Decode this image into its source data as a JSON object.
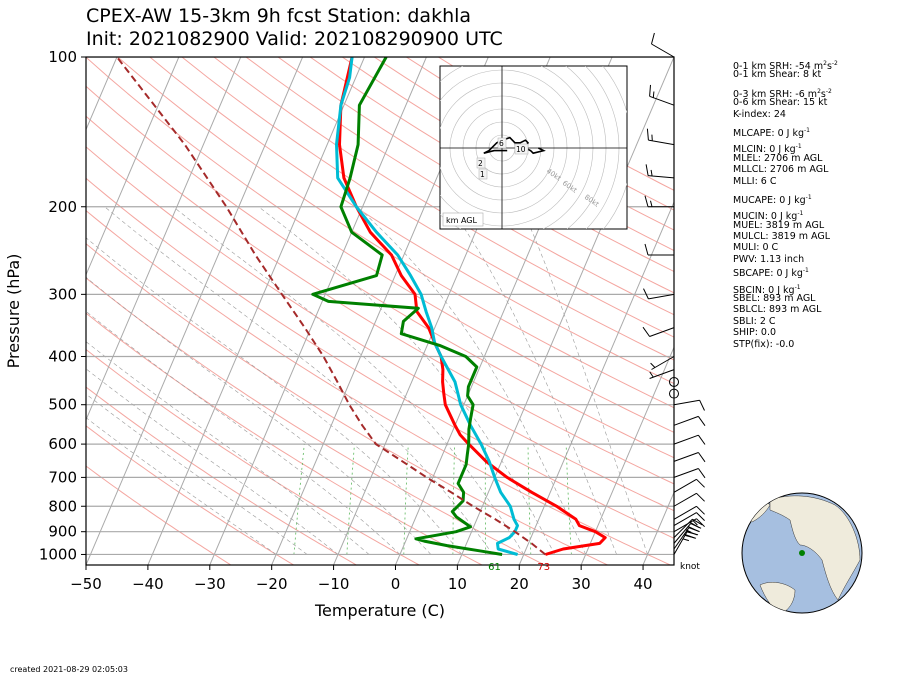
{
  "header": {
    "line1": "CPEX-AW 15-3km  9h fcst  Station: dakhla",
    "line2": "Init: 2021082900  Valid: 202108290900 UTC"
  },
  "footer": {
    "created": "created 2021-08-29 02:05:03"
  },
  "indices": [
    {
      "text": "0-1 km SRH: -54 m",
      "sup": "2",
      "tail": "s",
      "sup2": "-2"
    },
    {
      "text": "0-1 km Shear: 8 kt"
    },
    {
      "gap": true
    },
    {
      "text": "0-3 km SRH: -6 m",
      "sup": "2",
      "tail": "s",
      "sup2": "-2"
    },
    {
      "text": "0-6 km Shear: 15 kt"
    },
    {
      "text": "K-index: 24"
    },
    {
      "gap": true
    },
    {
      "text": "MLCAPE: 0 J kg",
      "sup": "-1"
    },
    {
      "gap": true
    },
    {
      "text": "MLCIN: 0 J kg",
      "sup": "-1"
    },
    {
      "text": "MLEL: 2706 m AGL"
    },
    {
      "text": "MLLCL: 2706 m AGL"
    },
    {
      "text": "MLLI: 6 C"
    },
    {
      "gap": true
    },
    {
      "text": "MUCAPE: 0 J kg",
      "sup": "-1"
    },
    {
      "gap": true
    },
    {
      "text": "MUCIN: 0 J kg",
      "sup": "-1"
    },
    {
      "text": "MUEL: 3819 m AGL"
    },
    {
      "text": "MULCL: 3819 m AGL"
    },
    {
      "text": "MULI: 0 C"
    },
    {
      "text": "PWV: 1.13 inch"
    },
    {
      "text": "SBCAPE: 0 J kg",
      "sup": "-1"
    },
    {
      "gap": true
    },
    {
      "text": "SBCIN: 0 J kg",
      "sup": "-1"
    },
    {
      "text": "SBEL: 893 m AGL"
    },
    {
      "text": "SBLCL: 893 m AGL"
    },
    {
      "text": "SBLI: 2 C"
    },
    {
      "text": "SHIP: 0.0"
    },
    {
      "text": "STP(fix): -0.0"
    }
  ],
  "chart_data": {
    "type": "line",
    "subtype": "skew-T log-p diagram",
    "xlabel": "Temperature (C)",
    "ylabel": "Pressure (hPa)",
    "xlim": [
      -50,
      45
    ],
    "ylim": [
      1050,
      100
    ],
    "y_scale": "log",
    "x_ticks": [
      -50,
      -40,
      -30,
      -20,
      -10,
      0,
      10,
      20,
      30,
      40
    ],
    "y_ticks": [
      100,
      200,
      300,
      400,
      500,
      600,
      700,
      800,
      900,
      1000
    ],
    "surface_labels": [
      {
        "text": "61",
        "color": "#008000"
      },
      {
        "text": "73",
        "color": "#d00000"
      }
    ],
    "wind_unit_label": "knot",
    "series": [
      {
        "color": "#ff0000",
        "points": [
          [
            1000,
            23.5
          ],
          [
            975,
            26
          ],
          [
            950,
            31.5
          ],
          [
            925,
            32
          ],
          [
            900,
            30
          ],
          [
            875,
            27
          ],
          [
            850,
            26
          ],
          [
            800,
            22
          ],
          [
            750,
            17
          ],
          [
            700,
            12
          ],
          [
            650,
            7.5
          ],
          [
            600,
            3.5
          ],
          [
            575,
            1.5
          ],
          [
            550,
            0
          ],
          [
            500,
            -3
          ],
          [
            475,
            -4
          ],
          [
            450,
            -5
          ],
          [
            425,
            -5.8
          ],
          [
            400,
            -7
          ],
          [
            375,
            -9
          ],
          [
            350,
            -11
          ],
          [
            325,
            -14
          ],
          [
            300,
            -15.5
          ],
          [
            275,
            -19
          ],
          [
            250,
            -22
          ],
          [
            225,
            -27
          ],
          [
            200,
            -31
          ],
          [
            175,
            -35
          ],
          [
            150,
            -38
          ],
          [
            125,
            -40.5
          ],
          [
            100,
            -42
          ]
        ]
      },
      {
        "color": "#00bcd4",
        "points": [
          [
            1000,
            19
          ],
          [
            975,
            15.5
          ],
          [
            950,
            15
          ],
          [
            925,
            16.5
          ],
          [
            900,
            17
          ],
          [
            875,
            17
          ],
          [
            850,
            16
          ],
          [
            800,
            14.5
          ],
          [
            750,
            12
          ],
          [
            700,
            10
          ],
          [
            650,
            8
          ],
          [
            600,
            5.5
          ],
          [
            550,
            2.5
          ],
          [
            500,
            -0.5
          ],
          [
            450,
            -3
          ],
          [
            400,
            -7
          ],
          [
            375,
            -9
          ],
          [
            350,
            -10.5
          ],
          [
            325,
            -12.5
          ],
          [
            300,
            -14.5
          ],
          [
            275,
            -17.5
          ],
          [
            250,
            -21
          ],
          [
            225,
            -26
          ],
          [
            200,
            -31
          ],
          [
            175,
            -36
          ],
          [
            150,
            -38.5
          ],
          [
            125,
            -40.5
          ],
          [
            110,
            -41
          ],
          [
            100,
            -42
          ]
        ]
      },
      {
        "color": "#008000",
        "points": [
          [
            1000,
            16.5
          ],
          [
            985,
            13
          ],
          [
            960,
            7
          ],
          [
            940,
            3
          ],
          [
            930,
            1.5
          ],
          [
            915,
            4.5
          ],
          [
            900,
            7.5
          ],
          [
            880,
            9.5
          ],
          [
            860,
            8
          ],
          [
            840,
            6.5
          ],
          [
            820,
            5.5
          ],
          [
            800,
            6
          ],
          [
            780,
            6.5
          ],
          [
            750,
            6
          ],
          [
            720,
            4.5
          ],
          [
            690,
            4.5
          ],
          [
            660,
            4.5
          ],
          [
            630,
            4
          ],
          [
            600,
            3.5
          ],
          [
            560,
            2.5
          ],
          [
            530,
            2
          ],
          [
            500,
            1.5
          ],
          [
            480,
            0
          ],
          [
            460,
            -0.5
          ],
          [
            440,
            -0.5
          ],
          [
            420,
            -0.5
          ],
          [
            400,
            -3
          ],
          [
            380,
            -8
          ],
          [
            360,
            -15
          ],
          [
            340,
            -15.5
          ],
          [
            320,
            -14
          ],
          [
            310,
            -29
          ],
          [
            300,
            -32
          ],
          [
            275,
            -23
          ],
          [
            250,
            -23.5
          ],
          [
            225,
            -30
          ],
          [
            200,
            -33.5
          ],
          [
            175,
            -34
          ],
          [
            150,
            -35
          ],
          [
            125,
            -37.5
          ],
          [
            100,
            -36.5
          ]
        ]
      },
      {
        "color": "#a52a2a",
        "dashed": true,
        "points": [
          [
            1000,
            23.5
          ],
          [
            950,
            20.5
          ],
          [
            900,
            17
          ],
          [
            850,
            13
          ],
          [
            800,
            8.5
          ],
          [
            750,
            4
          ],
          [
            700,
            -1
          ],
          [
            650,
            -6
          ],
          [
            600,
            -11.5
          ],
          [
            550,
            -15
          ],
          [
            500,
            -18.5
          ],
          [
            450,
            -22
          ],
          [
            400,
            -26
          ],
          [
            350,
            -31
          ],
          [
            300,
            -37
          ],
          [
            250,
            -44
          ],
          [
            200,
            -52
          ],
          [
            150,
            -63
          ],
          [
            100,
            -80
          ]
        ]
      }
    ],
    "wind_barbs": [
      {
        "p": 1000,
        "speed": 25,
        "dir": 30
      },
      {
        "p": 975,
        "speed": 30,
        "dir": 35
      },
      {
        "p": 950,
        "speed": 25,
        "dir": 40
      },
      {
        "p": 925,
        "speed": 20,
        "dir": 45
      },
      {
        "p": 900,
        "speed": 15,
        "dir": 60
      },
      {
        "p": 875,
        "speed": 10,
        "dir": 60
      },
      {
        "p": 850,
        "speed": 10,
        "dir": 60
      },
      {
        "p": 800,
        "speed": 10,
        "dir": 60
      },
      {
        "p": 750,
        "speed": 10,
        "dir": 60
      },
      {
        "p": 700,
        "speed": 10,
        "dir": 70
      },
      {
        "p": 650,
        "speed": 10,
        "dir": 70
      },
      {
        "p": 600,
        "speed": 10,
        "dir": 70
      },
      {
        "p": 550,
        "speed": 10,
        "dir": 70
      },
      {
        "p": 500,
        "speed": 10,
        "dir": 80
      },
      {
        "p": 475,
        "speed": 0,
        "dir": 0
      },
      {
        "p": 450,
        "speed": 0,
        "dir": 0
      },
      {
        "p": 425,
        "speed": 5,
        "dir": 250
      },
      {
        "p": 400,
        "speed": 5,
        "dir": 240
      },
      {
        "p": 350,
        "speed": 10,
        "dir": 250
      },
      {
        "p": 300,
        "speed": 10,
        "dir": 260
      },
      {
        "p": 250,
        "speed": 10,
        "dir": 270
      },
      {
        "p": 200,
        "speed": 15,
        "dir": 270
      },
      {
        "p": 175,
        "speed": 15,
        "dir": 275
      },
      {
        "p": 150,
        "speed": 15,
        "dir": 280
      },
      {
        "p": 125,
        "speed": 15,
        "dir": 290
      },
      {
        "p": 100,
        "speed": 10,
        "dir": 300
      }
    ],
    "hodograph": {
      "ring_labels": [
        "40kt",
        "60kt",
        "80kt"
      ],
      "height_labels": [
        "6",
        "10",
        "2",
        "1"
      ],
      "unit_label": "km AGL",
      "points": [
        [
          2,
          -1
        ],
        [
          -3,
          -1
        ],
        [
          -7,
          -2
        ],
        [
          -5,
          -1
        ],
        [
          -2,
          2
        ],
        [
          0,
          3
        ],
        [
          3,
          4
        ],
        [
          5,
          2
        ],
        [
          7,
          2
        ],
        [
          9,
          3
        ],
        [
          10,
          2
        ],
        [
          9,
          0
        ],
        [
          11,
          -1
        ],
        [
          12,
          -2
        ],
        [
          16,
          -1
        ],
        [
          14,
          0
        ]
      ]
    },
    "globe": {
      "marker_color": "#008000"
    }
  }
}
